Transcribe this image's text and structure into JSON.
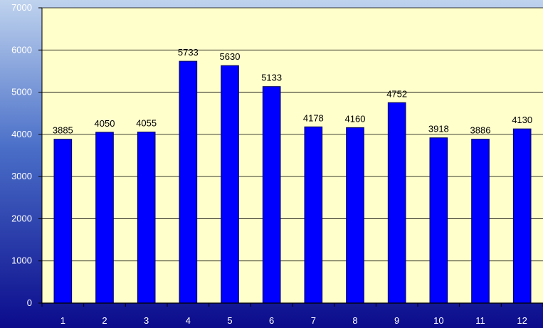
{
  "chart_data": {
    "type": "bar",
    "categories": [
      "1",
      "2",
      "3",
      "4",
      "5",
      "6",
      "7",
      "8",
      "9",
      "10",
      "11",
      "12"
    ],
    "values": [
      3885,
      4050,
      4055,
      5733,
      5630,
      5133,
      4178,
      4160,
      4752,
      3918,
      3886,
      4130
    ],
    "data_labels": [
      "3885",
      "4050",
      "4055",
      "5733",
      "5630",
      "5133",
      "4178",
      "4160",
      "4752",
      "3918",
      "3886",
      "4130"
    ],
    "y_ticks": [
      "0",
      "1000",
      "2000",
      "3000",
      "4000",
      "5000",
      "6000",
      "7000"
    ],
    "ylim": [
      0,
      7000
    ],
    "grid": true,
    "legend": "none",
    "title": "",
    "xlabel": "",
    "ylabel": ""
  },
  "colors": {
    "bar_fill": "#0000FF",
    "bar_stroke": "#00005A",
    "plot_background": "#FFFFCC",
    "gridline": "#000000",
    "background_top": "#BFD3EE",
    "background_bottom": "#0B0B8C"
  }
}
